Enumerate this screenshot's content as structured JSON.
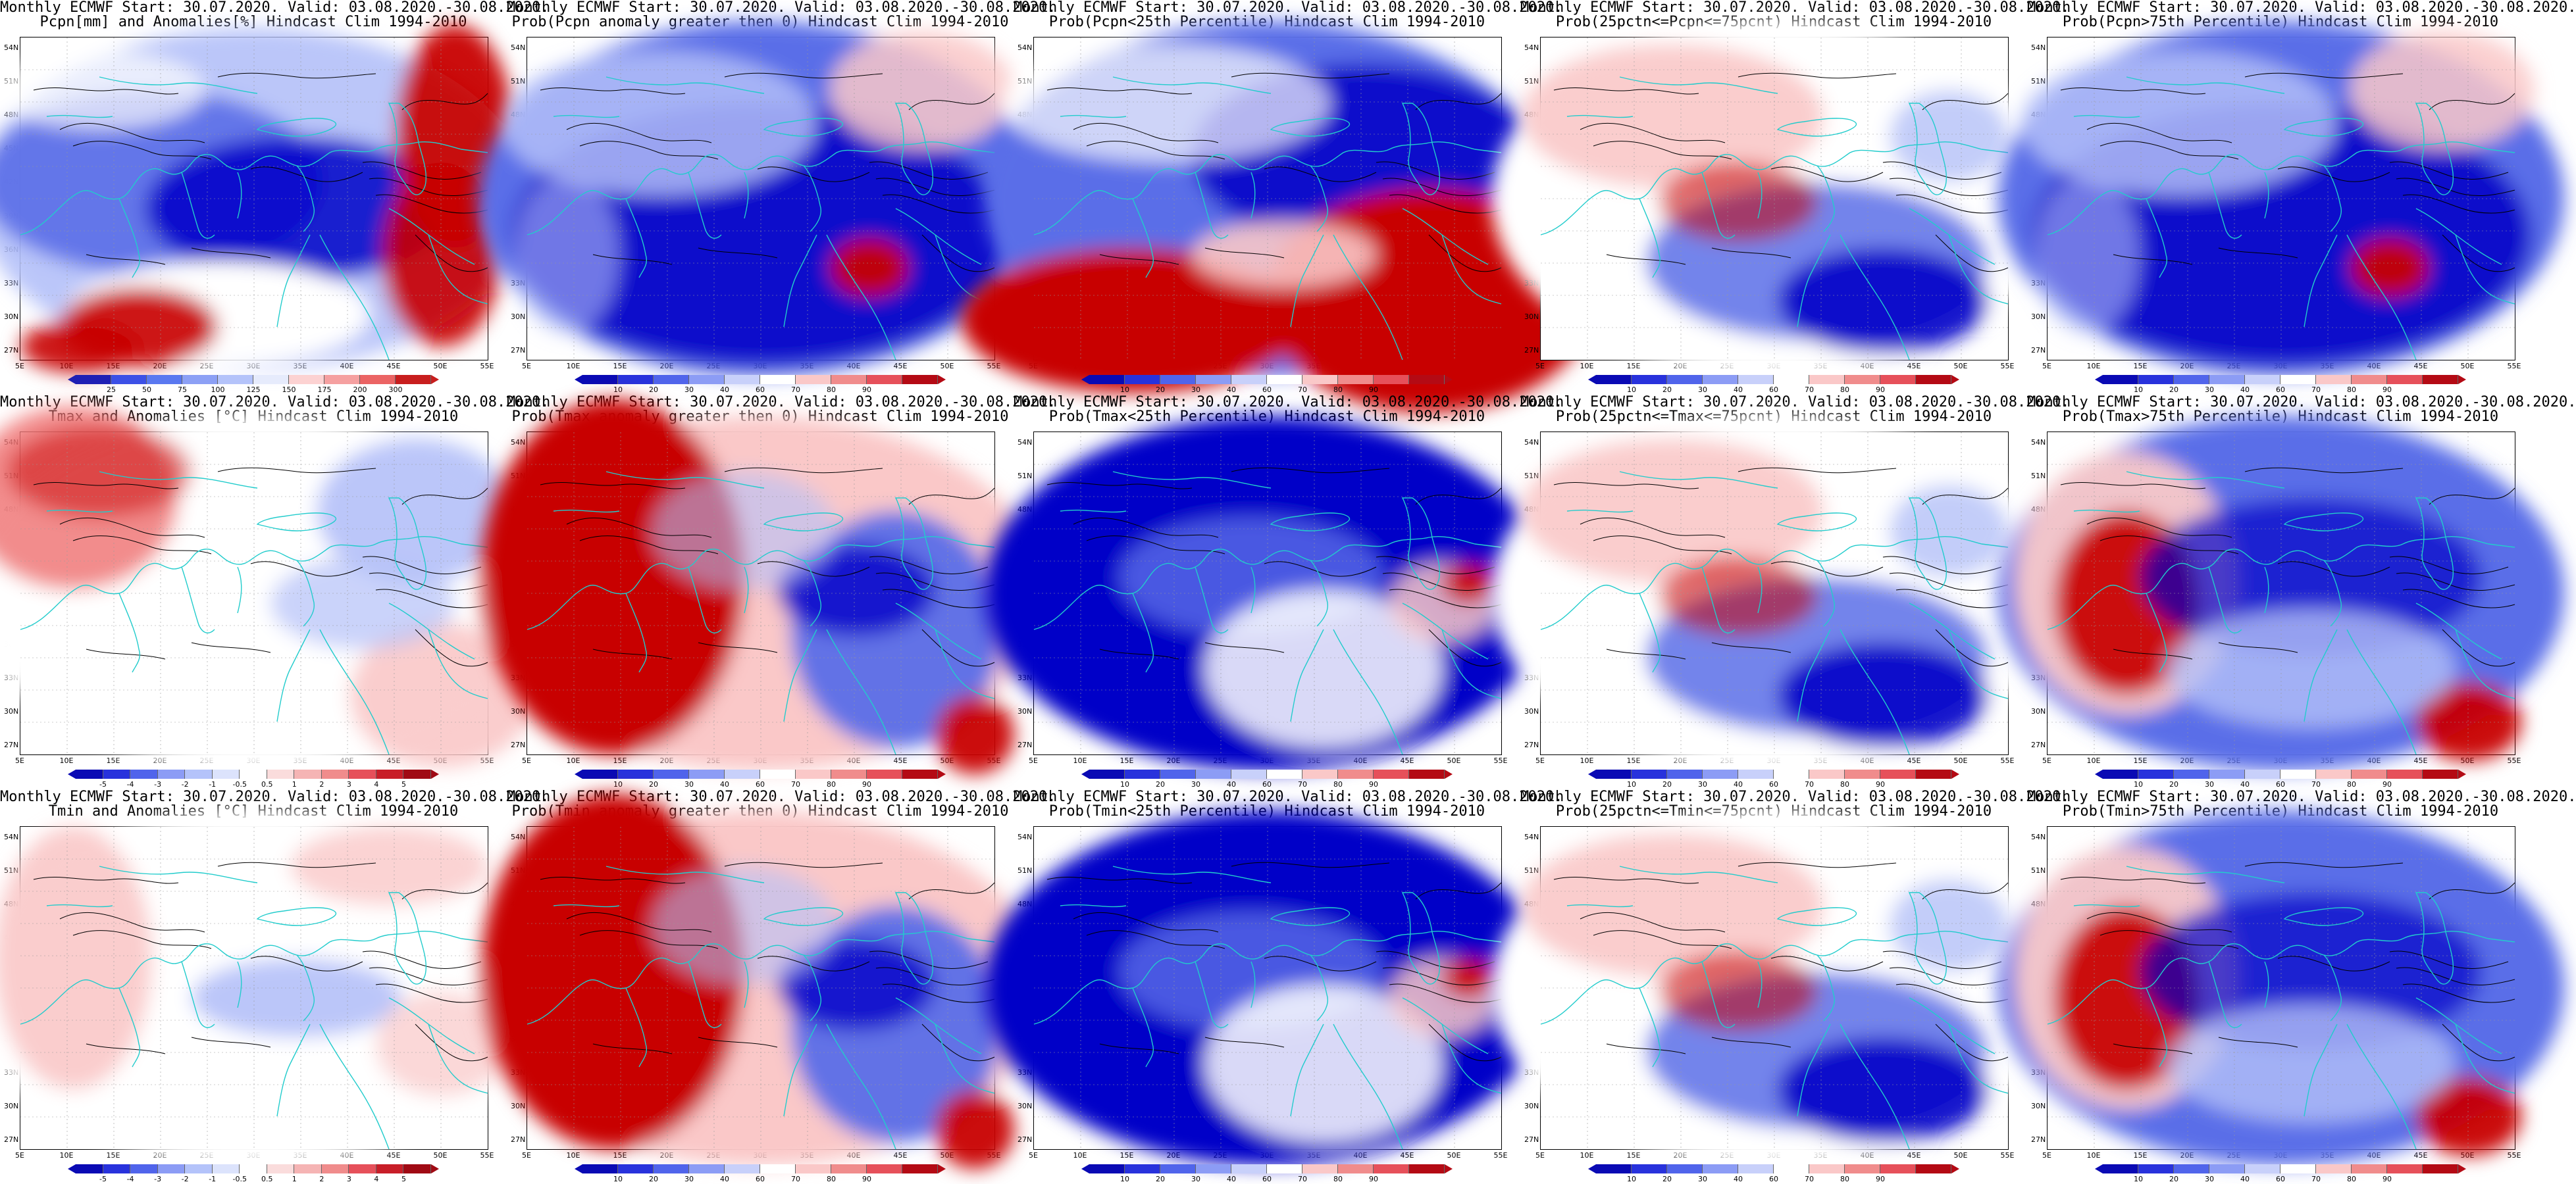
{
  "panels": [
    {
      "id": "r1c1",
      "title1": "Monthly ECMWF Start: 30.07.2020. Valid: 03.08.2020.-30.08.2020.",
      "title2": "Pcpn[mm] and Anomalies[%] Hindcast Clim 1994-2010",
      "style": "precip_anom",
      "colorbar": "precip",
      "overlay": "desert"
    },
    {
      "id": "r1c2",
      "title1": "Monthly ECMWF Start: 30.07.2020. Valid: 03.08.2020.-30.08.2020.",
      "title2": "Prob(Pcpn anomaly greater then 0) Hindcast Clim 1994-2010",
      "style": "prob_blue",
      "colorbar": "prob"
    },
    {
      "id": "r1c3",
      "title1": "Monthly ECMWF Start: 30.07.2020. Valid: 03.08.2020.-30.08.2020.",
      "title2": "Prob(Pcpn<25th Percentile) Hindcast Clim 1994-2010",
      "style": "prob_dry",
      "colorbar": "prob"
    },
    {
      "id": "r1c4",
      "title1": "Monthly ECMWF Start: 30.07.2020. Valid: 03.08.2020.-30.08.2020.",
      "title2": "Prob(25pctn<=Pcpn<=75pcnt) Hindcast Clim 1994-2010",
      "style": "prob_mid",
      "colorbar": "prob"
    },
    {
      "id": "r1c5",
      "title1": "Monthly ECMWF Start: 30.07.2020. Valid: 03.08.2020.-30.08.2020.",
      "title2": "Prob(Pcpn>75th Percentile) Hindcast Clim 1994-2010",
      "style": "prob_blue",
      "colorbar": "prob"
    },
    {
      "id": "r2c1",
      "title1": "Monthly ECMWF Start: 30.07.2020. Valid: 03.08.2020.-30.08.2020.",
      "title2": "Tmax and Anomalies [°C] Hindcast Clim 1994-2010",
      "style": "temp_anom",
      "colorbar": "temp"
    },
    {
      "id": "r2c2",
      "title1": "Monthly ECMWF Start: 30.07.2020. Valid: 03.08.2020.-30.08.2020.",
      "title2": "Prob(Tmax anomaly greater then 0) Hindcast Clim 1994-2010",
      "style": "prob_red",
      "colorbar": "prob"
    },
    {
      "id": "r2c3",
      "title1": "Monthly ECMWF Start: 30.07.2020. Valid: 03.08.2020.-30.08.2020.",
      "title2": "Prob(Tmax<25th Percentile) Hindcast Clim 1994-2010",
      "style": "prob_deepblue",
      "colorbar": "prob"
    },
    {
      "id": "r2c4",
      "title1": "Monthly ECMWF Start: 30.07.2020. Valid: 03.08.2020.-30.08.2020.",
      "title2": "Prob(25pctn<=Tmax<=75pcnt) Hindcast Clim 1994-2010",
      "style": "prob_mid",
      "colorbar": "prob"
    },
    {
      "id": "r2c5",
      "title1": "Monthly ECMWF Start: 30.07.2020. Valid: 03.08.2020.-30.08.2020.",
      "title2": "Prob(Tmax>75th Percentile) Hindcast Clim 1994-2010",
      "style": "prob_redwest",
      "colorbar": "prob"
    },
    {
      "id": "r3c1",
      "title1": "Monthly ECMWF Start: 30.07.2020. Valid: 03.08.2020.-30.08.2020.",
      "title2": "Tmin and Anomalies [°C] Hindcast Clim 1994-2010",
      "style": "temp_anom_light",
      "colorbar": "temp"
    },
    {
      "id": "r3c2",
      "title1": "Monthly ECMWF Start: 30.07.2020. Valid: 03.08.2020.-30.08.2020.",
      "title2": "Prob(Tmin anomaly greater then 0) Hindcast Clim 1994-2010",
      "style": "prob_red",
      "colorbar": "prob"
    },
    {
      "id": "r3c3",
      "title1": "Monthly ECMWF Start: 30.07.2020. Valid: 03.08.2020.-30.08.2020.",
      "title2": "Prob(Tmin<25th Percentile) Hindcast Clim 1994-2010",
      "style": "prob_deepblue",
      "colorbar": "prob"
    },
    {
      "id": "r3c4",
      "title1": "Monthly ECMWF Start: 30.07.2020. Valid: 03.08.2020.-30.08.2020.",
      "title2": "Prob(25pctn<=Tmin<=75pcnt) Hindcast Clim 1994-2010",
      "style": "prob_mid",
      "colorbar": "prob"
    },
    {
      "id": "r3c5",
      "title1": "Monthly ECMWF Start: 30.07.2020. Valid: 03.08.2020.-30.08.2020.",
      "title2": "Prob(Tmin>75th Percentile) Hindcast Clim 1994-2010",
      "style": "prob_redwest",
      "colorbar": "prob"
    }
  ],
  "axes": {
    "lat_labels": [
      "54N",
      "51N",
      "48N",
      "45N",
      "42N",
      "39N",
      "36N",
      "33N",
      "30N",
      "27N"
    ],
    "lon_labels": [
      "5E",
      "10E",
      "15E",
      "20E",
      "25E",
      "30E",
      "35E",
      "40E",
      "45E",
      "50E",
      "55E"
    ]
  },
  "colorbars": {
    "precip": {
      "labels": [
        "25",
        "50",
        "75",
        "100",
        "125",
        "150",
        "175",
        "200",
        "300"
      ],
      "colors": [
        "#1f1fb4",
        "#3c50e6",
        "#5a78f0",
        "#8ca0f5",
        "#b4c3fa",
        "#e6ebfc",
        "#fcd2d2",
        "#f5a0a0",
        "#eb6464",
        "#c81e1e"
      ]
    },
    "prob": {
      "labels": [
        "10",
        "20",
        "30",
        "40",
        "60",
        "70",
        "80",
        "90"
      ],
      "colors": [
        "#0a0ab4",
        "#2832dc",
        "#5064eb",
        "#8c9cf5",
        "#c8d0fa",
        "#ffffff",
        "#fac8c8",
        "#f08c8c",
        "#e6505a",
        "#b40a14"
      ]
    },
    "temp": {
      "labels": [
        "-5",
        "-4",
        "-3",
        "-2",
        "-1",
        "-0.5",
        "0.5",
        "1",
        "2",
        "3",
        "4",
        "5"
      ],
      "colors": [
        "#0a0ab4",
        "#2832dc",
        "#5064eb",
        "#8c9cf5",
        "#b4c3fa",
        "#dce3fc",
        "#ffffff",
        "#fadcdc",
        "#f5b4b4",
        "#f08c8c",
        "#e6505a",
        "#c81e28",
        "#a00a14"
      ]
    }
  },
  "palette": {
    "deep_blue": "#0000c8",
    "mid_blue": "#5a6ee8",
    "light_blue": "#b4c0f8",
    "deep_red": "#c80000",
    "mid_red": "#f07878",
    "light_red": "#fac8c8",
    "coast": "#22cccc",
    "contour": "#000000"
  }
}
